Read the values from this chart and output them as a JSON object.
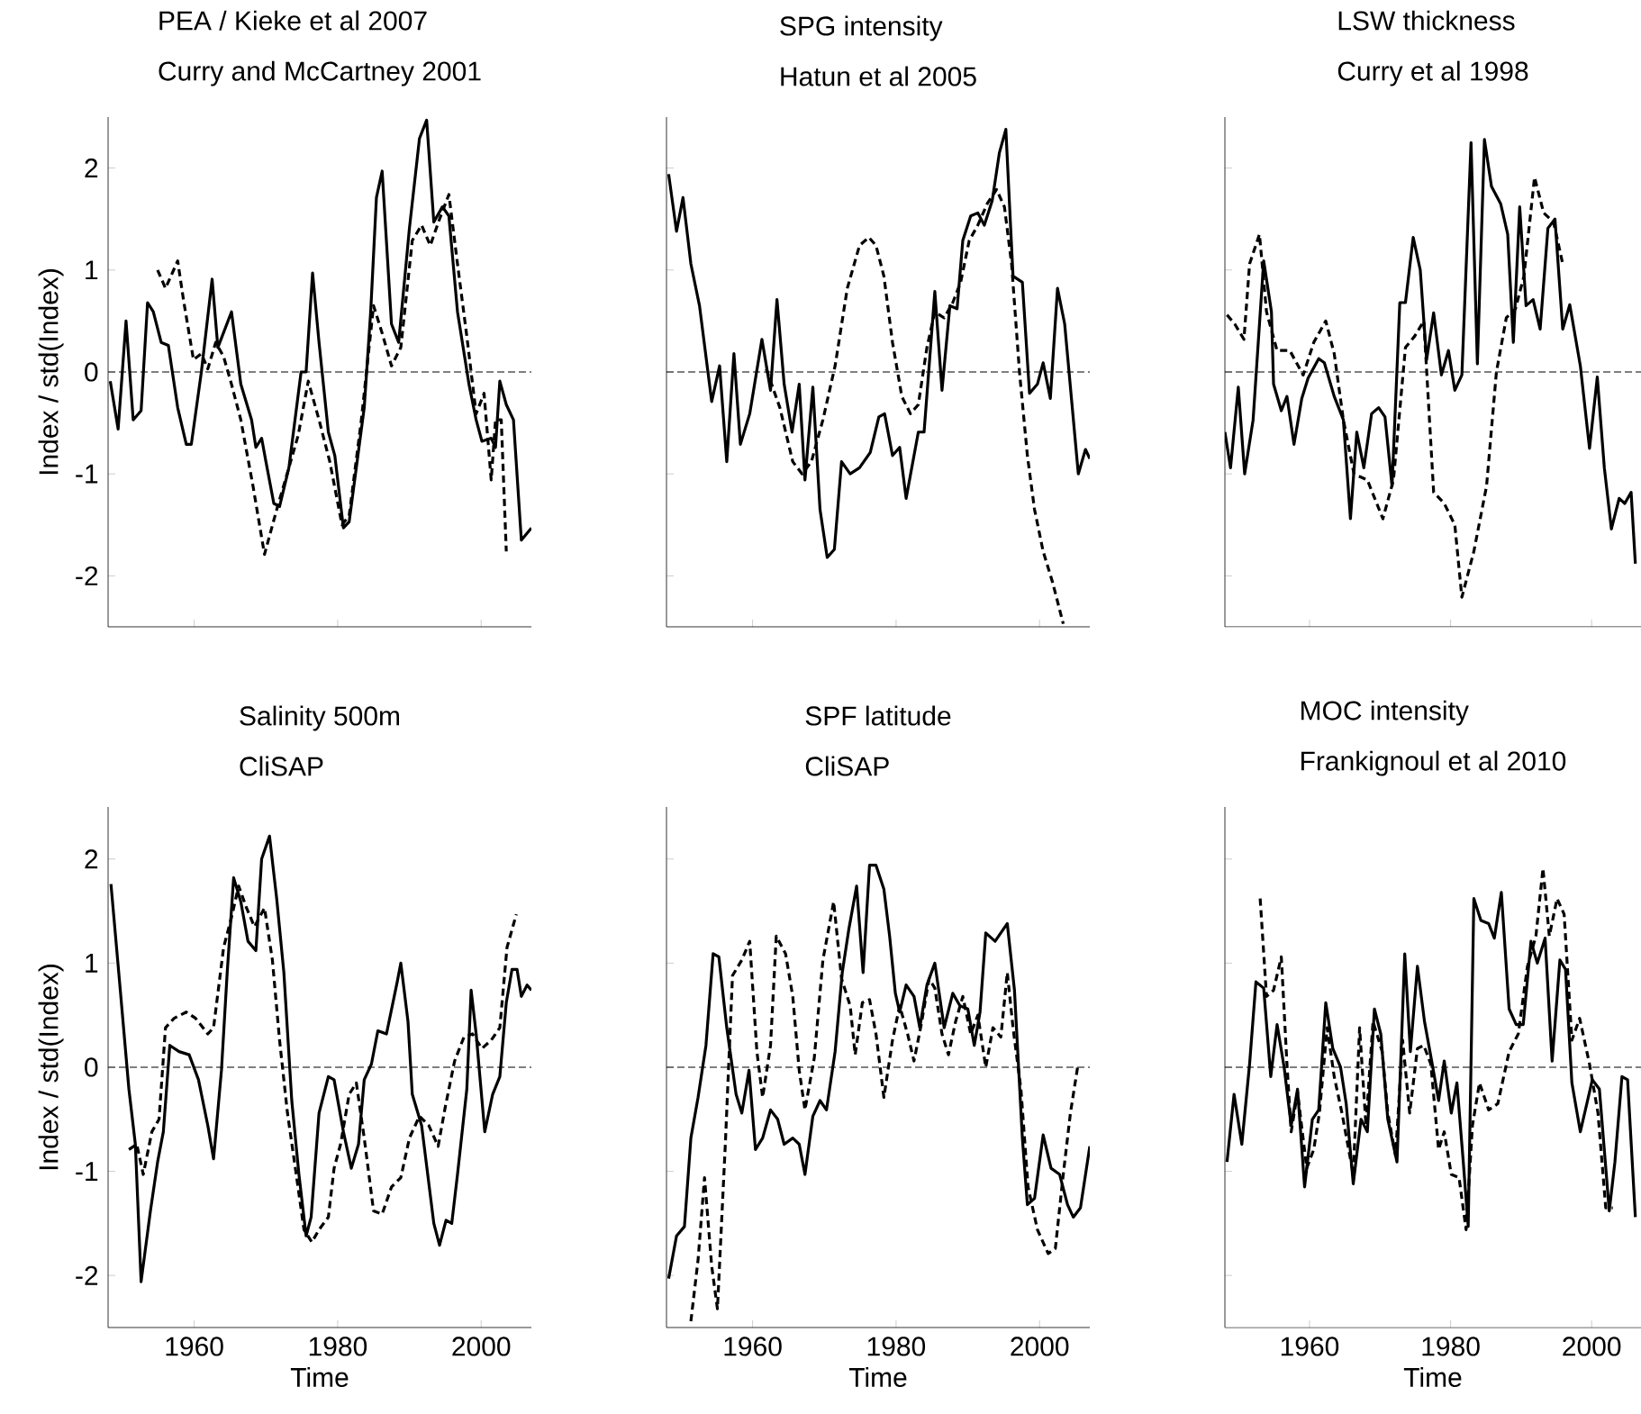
{
  "chart_data": [
    {
      "type": "line",
      "title": "PEA / Kieke et al 2007",
      "subtitle": "Curry and McCartney 2001",
      "ylabel": "Index / std(Index)",
      "xlim": [
        1948,
        2007
      ],
      "ylim": [
        -2.5,
        2.5
      ],
      "xticks": [
        1960,
        1980,
        2000
      ],
      "yticks": [
        -2,
        -1,
        0,
        1,
        2
      ],
      "tick_labels": "y",
      "ref_lines": [
        {
          "axis": "y",
          "value": 0,
          "line_style": "dashed"
        }
      ],
      "series": [
        {
          "color": "#000000",
          "line_style": "solid",
          "x": [
            1948.3,
            1949.4,
            1950.5,
            1951.5,
            1952.6,
            1953.5,
            1954.3,
            1955.4,
            1956.4,
            1957.7,
            1958.9,
            1959.6,
            1961,
            1962.5,
            1963.3,
            1965.2,
            1966.5,
            1968,
            1968.6,
            1969.4,
            1970,
            1971.1,
            1971.9,
            1973.2,
            1974.9,
            1975.6,
            1976.5,
            1977.4,
            1978.7,
            1979.6,
            1980.8,
            1981.6,
            1983.7,
            1984.6,
            1985.4,
            1986.2,
            1987.5,
            1988.5,
            1990,
            1991.4,
            1992.4,
            1993.4,
            1994.6,
            1995.5,
            1996.7,
            1998.3,
            1999.3,
            2000.1,
            2001.4,
            2002,
            2002.6,
            2003.5,
            2004.5,
            2005.6,
            2007
          ],
          "values": [
            -0.09,
            -0.56,
            0.5,
            -0.47,
            -0.38,
            0.68,
            0.59,
            0.29,
            0.26,
            -0.35,
            -0.71,
            -0.71,
            0,
            0.91,
            0.24,
            0.59,
            -0.12,
            -0.47,
            -0.74,
            -0.65,
            -0.88,
            -1.29,
            -1.32,
            -0.94,
            0,
            0,
            0.97,
            0.29,
            -0.59,
            -0.82,
            -1.53,
            -1.47,
            -0.35,
            0.59,
            1.71,
            1.97,
            0.47,
            0.29,
            1.41,
            2.29,
            2.47,
            1.47,
            1.62,
            1.53,
            0.59,
            -0.12,
            -0.47,
            -0.68,
            -0.65,
            -0.74,
            -0.09,
            -0.32,
            -0.47,
            -1.65,
            -1.53
          ]
        },
        {
          "color": "#000000",
          "line_style": "dashed",
          "x": [
            1954.9,
            1956,
            1957.7,
            1958.5,
            1959.9,
            1961,
            1961.9,
            1963,
            1964.1,
            1965.2,
            1966.5,
            1968.2,
            1969.8,
            1971.5,
            1973.2,
            1974.5,
            1975.9,
            1977.4,
            1978.9,
            1980.6,
            1981.6,
            1983.3,
            1985,
            1986.2,
            1987.5,
            1988.8,
            1990.4,
            1991.7,
            1992.9,
            1994.2,
            1995.5,
            1996.7,
            1998,
            1999.3,
            2000.4,
            2001.4,
            2002,
            2002.8,
            2003.5
          ],
          "values": [
            1.0,
            0.82,
            1.09,
            0.71,
            0.12,
            0.18,
            0.03,
            0.29,
            0.15,
            -0.12,
            -0.47,
            -1.12,
            -1.79,
            -1.35,
            -0.94,
            -0.62,
            -0.09,
            -0.47,
            -0.88,
            -1.5,
            -1.41,
            -0.47,
            0.65,
            0.38,
            0.06,
            0.24,
            1.29,
            1.44,
            1.24,
            1.5,
            1.74,
            1.06,
            0.35,
            -0.41,
            -0.21,
            -1.06,
            -0.47,
            -0.47,
            -1.76
          ]
        }
      ]
    },
    {
      "type": "line",
      "title": "SPG intensity",
      "subtitle": "Hatun et al 2005",
      "xlim": [
        1948,
        2007
      ],
      "ylim": [
        -2.5,
        2.5
      ],
      "xticks": [
        1960,
        1980,
        2000
      ],
      "yticks": [
        -2,
        -1,
        0,
        1,
        2
      ],
      "tick_labels": false,
      "ref_lines": [
        {
          "axis": "y",
          "value": 0,
          "line_style": "dashed"
        }
      ],
      "series": [
        {
          "color": "#000000",
          "line_style": "solid",
          "x": [
            1948.3,
            1949.4,
            1950.3,
            1951.4,
            1952.6,
            1954.3,
            1955.4,
            1956.4,
            1957.4,
            1958.3,
            1959.6,
            1961.3,
            1962.5,
            1963.4,
            1964.4,
            1965.5,
            1966.5,
            1967.3,
            1968.4,
            1969.4,
            1970.4,
            1971.4,
            1972.4,
            1973.6,
            1974.9,
            1976.4,
            1977.6,
            1978.4,
            1979.5,
            1980.5,
            1981.4,
            1983.1,
            1983.9,
            1985.4,
            1986.4,
            1987.5,
            1988.5,
            1989.3,
            1990.4,
            1991.4,
            1992.3,
            1993.4,
            1994.4,
            1995.3,
            1996.3,
            1997.6,
            1998.6,
            1999.7,
            2000.5,
            2001.5,
            2002.5,
            2003.5,
            2005.4,
            2006.4,
            2007
          ],
          "values": [
            1.94,
            1.38,
            1.71,
            1.06,
            0.65,
            -0.29,
            0.06,
            -0.88,
            0.18,
            -0.71,
            -0.41,
            0.32,
            -0.18,
            0.71,
            -0.12,
            -0.59,
            -0.12,
            -1.06,
            -0.15,
            -1.35,
            -1.82,
            -1.74,
            -0.88,
            -1.0,
            -0.94,
            -0.79,
            -0.44,
            -0.41,
            -0.82,
            -0.74,
            -1.24,
            -0.59,
            -0.59,
            0.79,
            -0.18,
            0.65,
            0.62,
            1.29,
            1.53,
            1.56,
            1.44,
            1.68,
            2.15,
            2.38,
            0.94,
            0.88,
            -0.21,
            -0.12,
            0.09,
            -0.26,
            0.82,
            0.47,
            -1.0,
            -0.76,
            -0.85
          ]
        },
        {
          "color": "#000000",
          "line_style": "dashed",
          "x": [
            1961.9,
            1963.8,
            1965.6,
            1966.9,
            1968.2,
            1969.8,
            1971.5,
            1973.2,
            1974.9,
            1976.2,
            1977.2,
            1978.3,
            1979.5,
            1980.8,
            1982,
            1983.1,
            1984.3,
            1985.4,
            1986.7,
            1987.9,
            1989,
            1990.2,
            1991.4,
            1992.7,
            1994,
            1995.1,
            1996.1,
            1997.2,
            1998.3,
            1999.3,
            2000.5,
            2001.8,
            2003.3
          ],
          "values": [
            0.03,
            -0.35,
            -0.88,
            -1.0,
            -0.88,
            -0.47,
            0.06,
            0.82,
            1.24,
            1.32,
            1.24,
            0.94,
            0.29,
            -0.24,
            -0.41,
            -0.32,
            0.24,
            0.59,
            0.53,
            0.68,
            0.88,
            1.29,
            1.44,
            1.65,
            1.79,
            1.62,
            1.06,
            0,
            -0.82,
            -1.35,
            -1.76,
            -2.06,
            -2.47
          ]
        }
      ]
    },
    {
      "type": "line",
      "title": "LSW thickness",
      "subtitle": "Curry et al 1998",
      "xlim": [
        1948,
        2007
      ],
      "ylim": [
        -2.5,
        2.5
      ],
      "xticks": [
        1960,
        1980,
        2000
      ],
      "yticks": [
        -2,
        -1,
        0,
        1,
        2
      ],
      "tick_labels": false,
      "ref_lines": [
        {
          "axis": "y",
          "value": 0,
          "line_style": "dashed"
        }
      ],
      "series": [
        {
          "color": "#000000",
          "line_style": "solid",
          "x": [
            1948,
            1948.8,
            1949.9,
            1950.8,
            1952,
            1953.5,
            1954.6,
            1954.9,
            1956,
            1956.8,
            1957.8,
            1958.9,
            1959.8,
            1961.3,
            1962.1,
            1963.5,
            1964.8,
            1965.8,
            1966.7,
            1967.7,
            1968.8,
            1969.8,
            1970.7,
            1971.7,
            1972.8,
            1973.6,
            1974.7,
            1975.7,
            1976.6,
            1977.6,
            1978.7,
            1979.7,
            1980.6,
            1981.6,
            1982.9,
            1983.8,
            1984.8,
            1985.8,
            1987.1,
            1988.1,
            1988.9,
            1989.8,
            1990.7,
            1991.7,
            1992.7,
            1993.8,
            1994.8,
            1995.9,
            1996.9,
            1998.4,
            1999.7,
            2000.8,
            2001.8,
            2002.8,
            2003.9,
            2004.7,
            2005.6,
            2006.2
          ],
          "values": [
            -0.59,
            -0.94,
            -0.15,
            -1.0,
            -0.47,
            1.09,
            0.59,
            -0.12,
            -0.38,
            -0.24,
            -0.71,
            -0.26,
            -0.06,
            0.13,
            0.09,
            -0.24,
            -0.47,
            -1.44,
            -0.59,
            -0.94,
            -0.41,
            -0.35,
            -0.44,
            -1.12,
            0.68,
            0.68,
            1.32,
            1.0,
            0.12,
            0.58,
            -0.03,
            0.21,
            -0.18,
            -0.03,
            2.25,
            0.08,
            2.28,
            1.82,
            1.65,
            1.35,
            0.29,
            1.62,
            0.65,
            0.71,
            0.42,
            1.41,
            1.5,
            0.42,
            0.66,
            0.06,
            -0.75,
            -0.05,
            -0.94,
            -1.54,
            -1.24,
            -1.29,
            -1.18,
            -1.88
          ]
        },
        {
          "color": "#000000",
          "line_style": "dashed",
          "x": [
            1948.3,
            1949.4,
            1950.7,
            1951.5,
            1952.9,
            1953.9,
            1955.4,
            1957.2,
            1959.1,
            1960.6,
            1962.3,
            1963.5,
            1964.8,
            1966.3,
            1968.2,
            1970.4,
            1971.9,
            1973.6,
            1974.9,
            1976.2,
            1977.6,
            1979.1,
            1980.6,
            1981.6,
            1983.3,
            1985.1,
            1986.5,
            1987.9,
            1989.2,
            1990.4,
            1991.9,
            1993.2,
            1994.6,
            1995.9
          ],
          "values": [
            0.56,
            0.47,
            0.32,
            1.06,
            1.35,
            0.59,
            0.21,
            0.21,
            -0.03,
            0.29,
            0.5,
            0.18,
            -0.47,
            -1.0,
            -1.06,
            -1.44,
            -1.06,
            0.24,
            0.35,
            0.5,
            -1.18,
            -1.29,
            -1.5,
            -2.21,
            -1.76,
            -1.12,
            0,
            0.53,
            0.62,
            0.94,
            1.91,
            1.56,
            1.47,
            1.06
          ]
        }
      ]
    },
    {
      "type": "line",
      "title": "Salinity 500m",
      "subtitle": "CliSAP",
      "xlabel": "Time",
      "ylabel": "Index / std(Index)",
      "xlim": [
        1948,
        2007
      ],
      "ylim": [
        -2.5,
        2.5
      ],
      "xticks": [
        1960,
        1980,
        2000
      ],
      "yticks": [
        -2,
        -1,
        0,
        1,
        2
      ],
      "ref_lines": [
        {
          "axis": "y",
          "value": 0,
          "line_style": "dashed"
        }
      ],
      "series": [
        {
          "color": "#000000",
          "line_style": "solid",
          "x": [
            1948.4,
            1949.7,
            1950.9,
            1951.8,
            1952.6,
            1953.9,
            1954.9,
            1955.7,
            1956.6,
            1957.9,
            1959.3,
            1960.6,
            1961.9,
            1962.7,
            1963.8,
            1964.6,
            1965.5,
            1966.5,
            1967.5,
            1968.6,
            1969.4,
            1970.5,
            1971.5,
            1972.5,
            1973.6,
            1974.6,
            1975.6,
            1976.3,
            1977.4,
            1978.7,
            1979.5,
            1980.8,
            1981.9,
            1982.9,
            1983.7,
            1984.7,
            1985.6,
            1986.8,
            1988.3,
            1988.8,
            1989.8,
            1990.4,
            1991.7,
            1993.4,
            1994.2,
            1995.1,
            1995.9,
            1996.7,
            1998,
            1998.6,
            1999.3,
            2000.5,
            2001.6,
            2002.6,
            2003.5,
            2004.3,
            2005,
            2005.6,
            2006.4,
            2007
          ],
          "values": [
            1.76,
            0.74,
            -0.21,
            -0.74,
            -2.06,
            -1.38,
            -0.91,
            -0.62,
            0.21,
            0.15,
            0.12,
            -0.12,
            -0.56,
            -0.88,
            -0.03,
            0.91,
            1.82,
            1.59,
            1.21,
            1.12,
            2.0,
            2.22,
            1.62,
            0.91,
            -0.32,
            -1.03,
            -1.62,
            -1.44,
            -0.44,
            -0.09,
            -0.12,
            -0.62,
            -0.97,
            -0.74,
            -0.12,
            0.03,
            0.35,
            0.32,
            0.82,
            1.0,
            0.44,
            -0.26,
            -0.56,
            -1.5,
            -1.71,
            -1.47,
            -1.5,
            -1.03,
            -0.21,
            0.74,
            0.32,
            -0.62,
            -0.26,
            -0.09,
            0.62,
            0.94,
            0.94,
            0.68,
            0.79,
            0.74
          ]
        },
        {
          "color": "#000000",
          "line_style": "dashed",
          "x": [
            1950.9,
            1952,
            1952.9,
            1954.1,
            1955.1,
            1956,
            1957.2,
            1958.9,
            1960.2,
            1961.9,
            1962.7,
            1964.1,
            1965.2,
            1966.2,
            1967.3,
            1968.4,
            1969.8,
            1970.9,
            1971.9,
            1973,
            1974.1,
            1975.3,
            1976.4,
            1977.4,
            1978.7,
            1979.5,
            1980.4,
            1981.6,
            1982.6,
            1983.7,
            1985,
            1986.2,
            1987.5,
            1988.8,
            1990,
            1991.4,
            1992.7,
            1994,
            1995,
            1996.3,
            1997.6,
            1998.8,
            2000.1,
            2001.4,
            2002.6,
            2003.6,
            2004.9
          ],
          "values": [
            -0.79,
            -0.74,
            -1.03,
            -0.62,
            -0.5,
            0.38,
            0.47,
            0.53,
            0.47,
            0.32,
            0.38,
            1.15,
            1.44,
            1.74,
            1.53,
            1.35,
            1.53,
            1.03,
            0.26,
            -0.44,
            -0.97,
            -1.56,
            -1.68,
            -1.56,
            -1.44,
            -0.97,
            -0.74,
            -0.26,
            -0.15,
            -0.68,
            -1.38,
            -1.41,
            -1.15,
            -1.06,
            -0.68,
            -0.47,
            -0.56,
            -0.76,
            -0.38,
            0.06,
            0.29,
            0.32,
            0.18,
            0.26,
            0.38,
            1.15,
            1.47
          ]
        }
      ]
    },
    {
      "type": "line",
      "title": "SPF latitude",
      "subtitle": "CliSAP",
      "xlabel": "Time",
      "xlim": [
        1948,
        2007
      ],
      "ylim": [
        -2.5,
        2.5
      ],
      "xticks": [
        1960,
        1980,
        2000
      ],
      "yticks": [
        -2,
        -1,
        0,
        1,
        2
      ],
      "tick_labels": "x",
      "ref_lines": [
        {
          "axis": "y",
          "value": 0,
          "line_style": "dashed"
        }
      ],
      "series": [
        {
          "color": "#000000",
          "line_style": "solid",
          "x": [
            1948.3,
            1949.4,
            1950.5,
            1951.4,
            1952.4,
            1953.5,
            1954.5,
            1955.3,
            1956.4,
            1957.7,
            1958.5,
            1959.5,
            1960.4,
            1961.4,
            1962.5,
            1963.5,
            1964.4,
            1965.6,
            1966.5,
            1967.3,
            1968.4,
            1969.4,
            1970.3,
            1971.5,
            1972.5,
            1973.4,
            1974.5,
            1975.4,
            1976.3,
            1977.2,
            1978.3,
            1979.1,
            1979.9,
            1980.5,
            1981.4,
            1982.5,
            1983.3,
            1984.3,
            1985.4,
            1986.7,
            1987.9,
            1988.9,
            1990,
            1990.9,
            1991.7,
            1992.5,
            1993.8,
            1995.5,
            1996.5,
            1997.6,
            1998.3,
            1999.3,
            2000.5,
            2001.6,
            2002.8,
            2003.9,
            2004.7,
            2005.7,
            2007
          ],
          "values": [
            -2.03,
            -1.62,
            -1.53,
            -0.68,
            -0.29,
            0.21,
            1.09,
            1.06,
            0.38,
            -0.26,
            -0.44,
            -0.03,
            -0.79,
            -0.68,
            -0.41,
            -0.5,
            -0.74,
            -0.68,
            -0.74,
            -1.03,
            -0.47,
            -0.32,
            -0.41,
            0.15,
            0.91,
            1.32,
            1.74,
            0.91,
            1.94,
            1.94,
            1.71,
            1.26,
            0.71,
            0.53,
            0.79,
            0.68,
            0.38,
            0.79,
            1.0,
            0.38,
            0.71,
            0.59,
            0.56,
            0.21,
            0.53,
            1.29,
            1.21,
            1.38,
            0.74,
            -0.68,
            -1.32,
            -1.26,
            -0.65,
            -0.97,
            -1.03,
            -1.32,
            -1.44,
            -1.35,
            -0.76
          ]
        },
        {
          "color": "#000000",
          "line_style": "dashed",
          "x": [
            1951.4,
            1952.4,
            1953.3,
            1954.3,
            1955.1,
            1956.2,
            1957.2,
            1958.5,
            1959.6,
            1960.6,
            1961.4,
            1962.5,
            1963.3,
            1964.6,
            1965.6,
            1966.5,
            1967.3,
            1968.6,
            1969.8,
            1971.3,
            1972.4,
            1973.6,
            1974.3,
            1975.3,
            1976.3,
            1977.2,
            1978.3,
            1979.5,
            1980.5,
            1981.6,
            1982.5,
            1983.5,
            1984.6,
            1985.4,
            1986.4,
            1987.3,
            1988.3,
            1989.3,
            1990.4,
            1991.4,
            1992.5,
            1993.5,
            1994.6,
            1995.5,
            1996.3,
            1997.4,
            1998.4,
            1999.7,
            2001.2,
            2002.2,
            2003.3,
            2004.3,
            2005.3
          ],
          "values": [
            -2.44,
            -1.85,
            -1.06,
            -1.91,
            -2.32,
            -0.74,
            0.88,
            1.03,
            1.21,
            0.15,
            -0.29,
            0.21,
            1.26,
            1.09,
            0.68,
            -0.03,
            -0.41,
            0.09,
            1.03,
            1.59,
            0.85,
            0.59,
            0.12,
            0.62,
            0.65,
            0.32,
            -0.29,
            0.26,
            0.59,
            0.32,
            0.06,
            0.41,
            0.85,
            0.76,
            0.32,
            0.12,
            0.44,
            0.68,
            0.32,
            0.5,
            0,
            0.38,
            0.29,
            0.91,
            0.38,
            -0.21,
            -1.15,
            -1.56,
            -1.79,
            -1.74,
            -1.03,
            -0.44,
            0
          ]
        }
      ]
    },
    {
      "type": "line",
      "title": "MOC intensity",
      "subtitle": "Frankignoul et al 2010",
      "xlabel": "Time",
      "xlim": [
        1948,
        2007
      ],
      "ylim": [
        -2.5,
        2.5
      ],
      "xticks": [
        1960,
        1980,
        2000
      ],
      "yticks": [
        -2,
        -1,
        0,
        1,
        2
      ],
      "tick_labels": "x",
      "ref_lines": [
        {
          "axis": "y",
          "value": 0,
          "line_style": "dashed"
        }
      ],
      "series": [
        {
          "color": "#000000",
          "line_style": "solid",
          "x": [
            1948.3,
            1949.3,
            1950.4,
            1951.5,
            1952.4,
            1953.5,
            1954.5,
            1955.4,
            1956.4,
            1957.4,
            1958.3,
            1959.3,
            1960.4,
            1961.3,
            1962.3,
            1963.3,
            1964.4,
            1965.2,
            1966.2,
            1967.3,
            1968.2,
            1969.2,
            1970.1,
            1971.1,
            1972.4,
            1973.5,
            1974.3,
            1975.3,
            1976.3,
            1977.4,
            1978.3,
            1979.1,
            1980.1,
            1980.9,
            1981.8,
            1982.5,
            1983.3,
            1984.3,
            1985.4,
            1986.2,
            1987.2,
            1988.3,
            1989.3,
            1990.3,
            1991.4,
            1992.3,
            1993.4,
            1994.4,
            1995.5,
            1996.3,
            1997.2,
            1998.4,
            2000.1,
            2001.1,
            2002.5,
            2003.3,
            2004.3,
            2005.1,
            2006.2
          ],
          "values": [
            -0.91,
            -0.26,
            -0.74,
            0.03,
            0.82,
            0.76,
            -0.09,
            0.41,
            0,
            -0.56,
            -0.21,
            -1.15,
            -0.5,
            -0.41,
            0.62,
            0.18,
            0,
            -0.35,
            -1.12,
            -0.5,
            -0.62,
            0.56,
            0.32,
            -0.5,
            -0.91,
            1.09,
            0.15,
            0.97,
            0.44,
            0.03,
            -0.32,
            0.06,
            -0.44,
            -0.15,
            -0.91,
            -1.53,
            1.62,
            1.41,
            1.38,
            1.24,
            1.68,
            0.56,
            0.41,
            0.41,
            1.21,
            1.0,
            1.24,
            0.06,
            1.03,
            0.94,
            -0.15,
            -0.62,
            -0.12,
            -0.21,
            -1.38,
            -0.91,
            -0.09,
            -0.12,
            -1.44
          ]
        },
        {
          "color": "#000000",
          "line_style": "dashed",
          "x": [
            1953,
            1953.9,
            1954.9,
            1956,
            1956.8,
            1957.4,
            1958.3,
            1959.6,
            1960.6,
            1961.4,
            1962.5,
            1963.5,
            1964.6,
            1966.2,
            1967.1,
            1968,
            1969,
            1970.3,
            1971.1,
            1972.2,
            1973.2,
            1974.2,
            1975.3,
            1976.2,
            1977.2,
            1978.3,
            1979.1,
            1980.1,
            1981.2,
            1982.2,
            1983.1,
            1984.1,
            1985.4,
            1986.7,
            1988.3,
            1989.6,
            1990.9,
            1992.1,
            1993.1,
            1994,
            1995.1,
            1996.1,
            1997.2,
            1998.3,
            1999.7,
            2000.9,
            2002,
            2003
          ],
          "values": [
            1.62,
            0.68,
            0.74,
            1.06,
            0.03,
            -0.62,
            -0.24,
            -0.97,
            -0.79,
            -0.44,
            0.38,
            -0.09,
            -0.44,
            -1.03,
            0.38,
            -0.56,
            0.44,
            0.15,
            -0.44,
            -0.85,
            0.26,
            -0.44,
            0.18,
            0.21,
            0.03,
            -0.79,
            -0.62,
            -1.03,
            -1.06,
            -1.56,
            -0.56,
            -0.15,
            -0.41,
            -0.35,
            0.15,
            0.32,
            0.97,
            1.26,
            1.91,
            1.26,
            1.62,
            1.47,
            0.26,
            0.47,
            0.03,
            -0.44,
            -1.35,
            -1.35
          ]
        }
      ]
    }
  ]
}
